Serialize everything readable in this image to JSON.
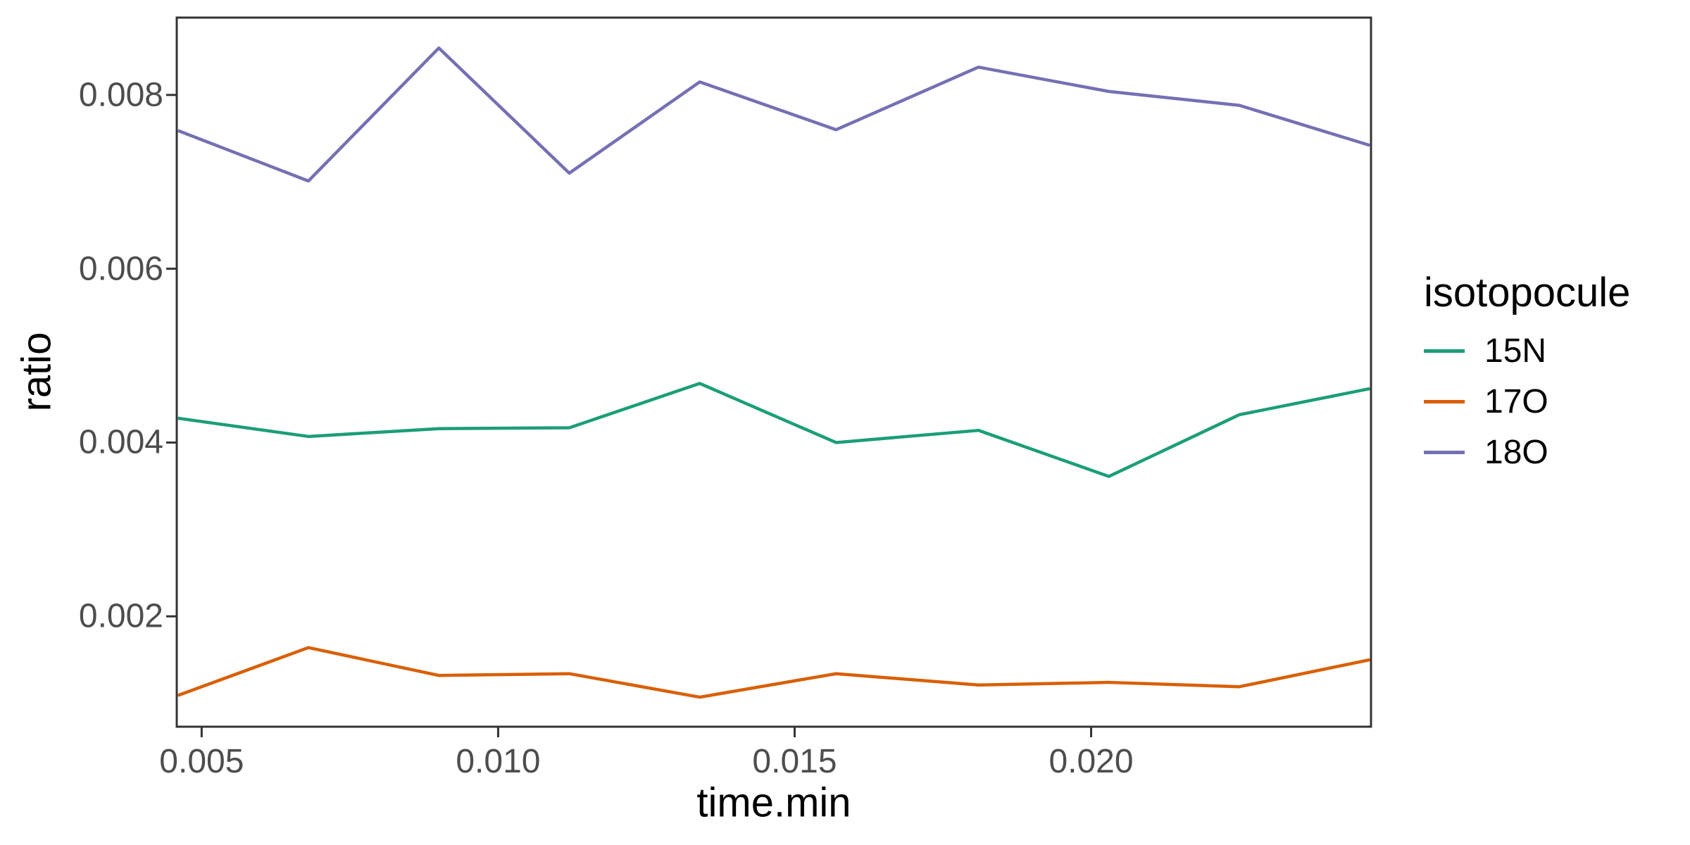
{
  "chart_data": {
    "type": "line",
    "title": "",
    "xlabel": "time.min",
    "ylabel": "ratio",
    "legend_title": "isotopocule",
    "legend_position": "right",
    "grid": false,
    "panel_border": true,
    "background_color": "#ffffff",
    "axis_color": "#333333",
    "tick_label_color": "#4d4d4d",
    "title_color": "#000000",
    "x": [
      0.0046,
      0.0068,
      0.009,
      0.0112,
      0.0134,
      0.0157,
      0.0181,
      0.0203,
      0.0225,
      0.0247
    ],
    "series": [
      {
        "name": "15N",
        "color": "#1B9E77",
        "values": [
          0.00428,
          0.00407,
          0.00416,
          0.00417,
          0.00468,
          0.004,
          0.00414,
          0.00361,
          0.00432,
          0.00462
        ]
      },
      {
        "name": "17O",
        "color": "#D95F02",
        "values": [
          0.00109,
          0.00164,
          0.00132,
          0.00134,
          0.00107,
          0.00134,
          0.00121,
          0.00124,
          0.00119,
          0.0015
        ]
      },
      {
        "name": "18O",
        "color": "#7570B3",
        "values": [
          0.00759,
          0.00701,
          0.00854,
          0.0071,
          0.00815,
          0.0076,
          0.00832,
          0.00804,
          0.00788,
          0.00742
        ]
      }
    ],
    "x_ticks": {
      "values": [
        0.005,
        0.01,
        0.015,
        0.02
      ],
      "labels": [
        "0.005",
        "0.010",
        "0.015",
        "0.020"
      ]
    },
    "y_ticks": {
      "values": [
        0.002,
        0.004,
        0.006,
        0.008
      ],
      "labels": [
        "0.002",
        "0.004",
        "0.006",
        "0.008"
      ]
    },
    "xlim": [
      0.00458,
      0.02472
    ],
    "ylim": [
      0.00073,
      0.00889
    ]
  }
}
